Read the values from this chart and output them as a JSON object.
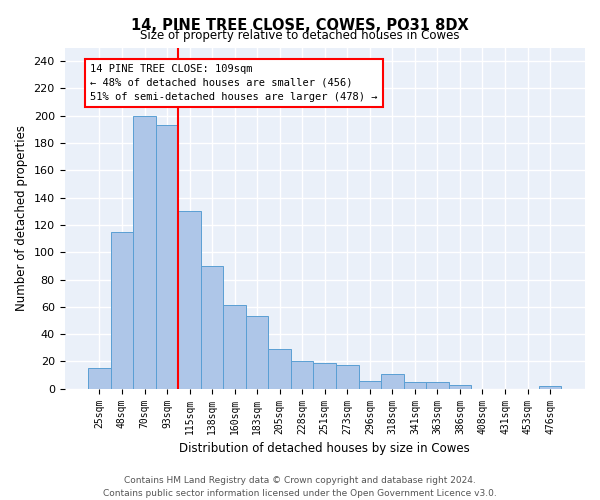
{
  "title": "14, PINE TREE CLOSE, COWES, PO31 8DX",
  "subtitle": "Size of property relative to detached houses in Cowes",
  "xlabel": "Distribution of detached houses by size in Cowes",
  "ylabel": "Number of detached properties",
  "categories": [
    "25sqm",
    "48sqm",
    "70sqm",
    "93sqm",
    "115sqm",
    "138sqm",
    "160sqm",
    "183sqm",
    "205sqm",
    "228sqm",
    "251sqm",
    "273sqm",
    "296sqm",
    "318sqm",
    "341sqm",
    "363sqm",
    "386sqm",
    "408sqm",
    "431sqm",
    "453sqm",
    "476sqm"
  ],
  "values": [
    15,
    115,
    200,
    193,
    130,
    90,
    61,
    53,
    29,
    20,
    19,
    17,
    6,
    11,
    5,
    5,
    3,
    0,
    0,
    0,
    2
  ],
  "bar_color": "#aec6e8",
  "bar_edge_color": "#5a9fd4",
  "annotation_text": "14 PINE TREE CLOSE: 109sqm\n← 48% of detached houses are smaller (456)\n51% of semi-detached houses are larger (478) →",
  "annotation_box_color": "white",
  "annotation_box_edge": "red",
  "vline_color": "red",
  "vline_x": 3.5,
  "background_color": "#eaf0f9",
  "grid_color": "white",
  "footer_text": "Contains HM Land Registry data © Crown copyright and database right 2024.\nContains public sector information licensed under the Open Government Licence v3.0.",
  "ylim": [
    0,
    250
  ],
  "yticks": [
    0,
    20,
    40,
    60,
    80,
    100,
    120,
    140,
    160,
    180,
    200,
    220,
    240
  ]
}
